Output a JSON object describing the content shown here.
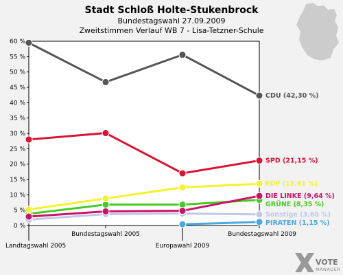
{
  "header": {
    "title": "Stadt Schloß Holte-Stukenbrock",
    "subtitle1": "Bundestagswahl 27.09.2009",
    "subtitle2": "Zweitstimmen Verlauf WB 7 - Lisa-Tetzner-Schule"
  },
  "logo": {
    "name": "VOTE",
    "sub": "MANAGER"
  },
  "chart_data": {
    "type": "line",
    "title": "Stadt Schloß Holte-Stukenbrock",
    "subtitle": [
      "Bundestagswahl 27.09.2009",
      "Zweitstimmen Verlauf WB 7 - Lisa-Tetzner-Schule"
    ],
    "categories": [
      "Landtagswahl 2005",
      "Bundestagswahl 2005",
      "Europawahl 2009",
      "Bundestagswahl 2009"
    ],
    "ylim": [
      0,
      60
    ],
    "yticks": [
      "0 %",
      "5 %",
      "10 %",
      "15 %",
      "20 %",
      "25 %",
      "30 %",
      "35 %",
      "40 %",
      "45 %",
      "50 %",
      "55 %",
      "60 %"
    ],
    "grid": false,
    "series": [
      {
        "name": "Sonstige",
        "label": "Sonstige (3,60 %)",
        "color": "#c0c8e8",
        "values": [
          1.9,
          3.7,
          3.9,
          3.6
        ]
      },
      {
        "name": "PIRATEN",
        "label": "PIRATEN (1,15 %)",
        "color": "#4aa8e0",
        "values": [
          null,
          null,
          0.4,
          1.15
        ]
      },
      {
        "name": "GRÜNE",
        "label": "GRÜNE (8,35 %)",
        "color": "#44cc22",
        "values": [
          3.8,
          6.8,
          6.8,
          8.35
        ]
      },
      {
        "name": "DIE LINKE",
        "label": "DIE LINKE (9,64 %)",
        "color": "#cc1166",
        "values": [
          2.9,
          4.6,
          4.8,
          9.64
        ]
      },
      {
        "name": "FDP",
        "label": "FDP (13,61 %)",
        "color": "#f2f230",
        "values": [
          5.2,
          8.8,
          12.4,
          13.61
        ]
      },
      {
        "name": "SPD",
        "label": "SPD (21,15 %)",
        "color": "#dd1133",
        "values": [
          28.0,
          30.1,
          17.0,
          21.15
        ]
      },
      {
        "name": "CDU",
        "label": "CDU (42,30 %)",
        "color": "#555555",
        "values": [
          59.5,
          46.7,
          55.6,
          42.3
        ]
      }
    ]
  }
}
